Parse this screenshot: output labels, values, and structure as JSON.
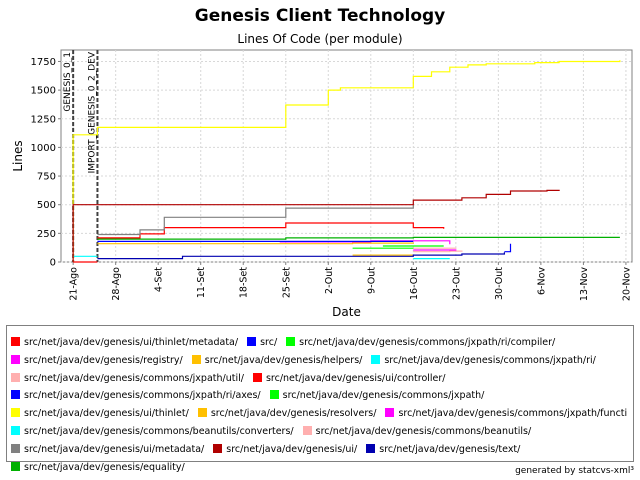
{
  "footer": "generated by statcvs-xml³",
  "chart_data": {
    "type": "line",
    "title": "Genesis Client Technology",
    "subtitle": "Lines Of Code (per module)",
    "xlabel": "Date",
    "ylabel": "Lines",
    "xlim": [
      "2003-08-19",
      "2003-11-21"
    ],
    "ylim": [
      0,
      1850
    ],
    "grid": true,
    "x_ticks": [
      "21-Ago",
      "28-Ago",
      "4-Set",
      "11-Set",
      "18-Set",
      "25-Set",
      "2-Out",
      "9-Out",
      "16-Out",
      "23-Out",
      "30-Out",
      "6-Nov",
      "13-Nov",
      "20-Nov"
    ],
    "x_tick_dates": [
      "2003-08-21",
      "2003-08-28",
      "2003-09-04",
      "2003-09-11",
      "2003-09-18",
      "2003-09-25",
      "2003-10-02",
      "2003-10-09",
      "2003-10-16",
      "2003-10-23",
      "2003-10-30",
      "2003-11-06",
      "2003-11-13",
      "2003-11-20"
    ],
    "y_ticks": [
      0,
      250,
      500,
      750,
      1000,
      1250,
      1500,
      1750
    ],
    "markers": [
      {
        "label": "GENESIS_0_1",
        "date": "2003-08-21"
      },
      {
        "label": "IMPORT_GENESIS_0_2_DEV",
        "date": "2003-08-25"
      }
    ],
    "legend_position": "bottom",
    "legend_rows": [
      [
        0,
        1,
        2
      ],
      [
        3,
        4,
        5
      ],
      [
        6,
        7
      ],
      [
        8,
        9
      ],
      [
        10,
        11,
        12
      ],
      [
        13,
        14
      ],
      [
        15,
        16,
        17
      ],
      [
        18
      ]
    ],
    "series": [
      {
        "name": "src/net/java/dev/genesis/ui/thinlet/metadata/",
        "color": "#ff0000",
        "x": [
          "2003-08-21",
          "2003-08-25"
        ],
        "y": [
          0,
          0
        ]
      },
      {
        "name": "src/",
        "color": "#0000ff",
        "x": [
          "2003-10-31",
          "2003-11-01"
        ],
        "y": [
          90,
          160
        ]
      },
      {
        "name": "src/net/java/dev/genesis/commons/jxpath/ri/compiler/",
        "color": "#00ff00",
        "x": [
          "2003-10-11",
          "2003-10-21"
        ],
        "y": [
          140,
          140
        ]
      },
      {
        "name": "src/net/java/dev/genesis/registry/",
        "color": "#ff00ff",
        "x": [
          "2003-09-24",
          "2003-10-09",
          "2003-10-22"
        ],
        "y": [
          175,
          185,
          155
        ]
      },
      {
        "name": "src/net/java/dev/genesis/helpers/",
        "color": "#ffc000",
        "x": [
          "2003-08-25",
          "2003-10-06",
          "2003-10-16"
        ],
        "y": [
          160,
          165,
          160
        ]
      },
      {
        "name": "src/net/java/dev/genesis/commons/jxpath/ri/",
        "color": "#00ffff",
        "x": [
          "2003-08-21",
          "2003-08-25"
        ],
        "y": [
          50,
          50
        ]
      },
      {
        "name": "src/net/java/dev/genesis/commons/jxpath/util/",
        "color": "#ffafaf",
        "x": [
          "2003-10-16",
          "2003-10-22",
          "2003-10-24"
        ],
        "y": [
          90,
          95,
          100
        ]
      },
      {
        "name": "src/net/java/dev/genesis/ui/controller/",
        "color": "#ff0000",
        "x": [
          "2003-08-25",
          "2003-09-01",
          "2003-09-05",
          "2003-09-25",
          "2003-10-16",
          "2003-10-21"
        ],
        "y": [
          210,
          245,
          300,
          340,
          300,
          290
        ]
      },
      {
        "name": "src/net/java/dev/genesis/commons/jxpath/ri/axes/",
        "color": "#0000ff",
        "x": [
          "2003-08-25",
          "2003-10-16"
        ],
        "y": [
          180,
          180
        ]
      },
      {
        "name": "src/net/java/dev/genesis/commons/jxpath/",
        "color": "#00ff00",
        "x": [
          "2003-10-06",
          "2003-10-16"
        ],
        "y": [
          120,
          125
        ]
      },
      {
        "name": "src/net/java/dev/genesis/ui/thinlet/",
        "color": "#ffff00",
        "x": [
          "2003-08-21",
          "2003-08-21",
          "2003-08-25",
          "2003-09-25",
          "2003-10-02",
          "2003-10-04",
          "2003-10-16",
          "2003-10-19",
          "2003-10-22",
          "2003-10-25",
          "2003-10-28",
          "2003-11-05",
          "2003-11-09",
          "2003-11-19"
        ],
        "y": [
          0,
          1110,
          1175,
          1370,
          1500,
          1520,
          1620,
          1660,
          1700,
          1720,
          1730,
          1740,
          1750,
          1760
        ]
      },
      {
        "name": "src/net/java/dev/genesis/resolvers/",
        "color": "#ffc000",
        "x": [
          "2003-10-06",
          "2003-10-16"
        ],
        "y": [
          60,
          60
        ]
      },
      {
        "name": "src/net/java/dev/genesis/commons/jxpath/functions/",
        "color": "#ff00ff",
        "x": [
          "2003-10-16",
          "2003-10-23"
        ],
        "y": [
          105,
          110
        ]
      },
      {
        "name": "src/net/java/dev/genesis/commons/beanutils/converters/",
        "color": "#00ffff",
        "x": [
          "2003-10-16",
          "2003-10-22"
        ],
        "y": [
          30,
          30
        ]
      },
      {
        "name": "src/net/java/dev/genesis/commons/beanutils/",
        "color": "#ffafaf",
        "x": [
          "2003-10-16",
          "2003-10-23"
        ],
        "y": [
          120,
          125
        ]
      },
      {
        "name": "src/net/java/dev/genesis/ui/metadata/",
        "color": "#808080",
        "x": [
          "2003-08-25",
          "2003-09-01",
          "2003-09-05",
          "2003-09-25",
          "2003-10-16"
        ],
        "y": [
          240,
          280,
          390,
          470,
          500
        ]
      },
      {
        "name": "src/net/java/dev/genesis/ui/",
        "color": "#b00000",
        "x": [
          "2003-08-21",
          "2003-08-21",
          "2003-10-16",
          "2003-10-24",
          "2003-10-28",
          "2003-11-01",
          "2003-11-07",
          "2003-11-09"
        ],
        "y": [
          0,
          500,
          540,
          560,
          590,
          620,
          625,
          630
        ]
      },
      {
        "name": "src/net/java/dev/genesis/text/",
        "color": "#0000b0",
        "x": [
          "2003-08-25",
          "2003-09-08",
          "2003-10-16",
          "2003-10-24",
          "2003-10-31"
        ],
        "y": [
          30,
          50,
          60,
          70,
          85
        ]
      },
      {
        "name": "src/net/java/dev/genesis/equality/",
        "color": "#00b000",
        "x": [
          "2003-08-25",
          "2003-09-25",
          "2003-10-16",
          "2003-11-19"
        ],
        "y": [
          200,
          210,
          215,
          215
        ]
      }
    ]
  }
}
